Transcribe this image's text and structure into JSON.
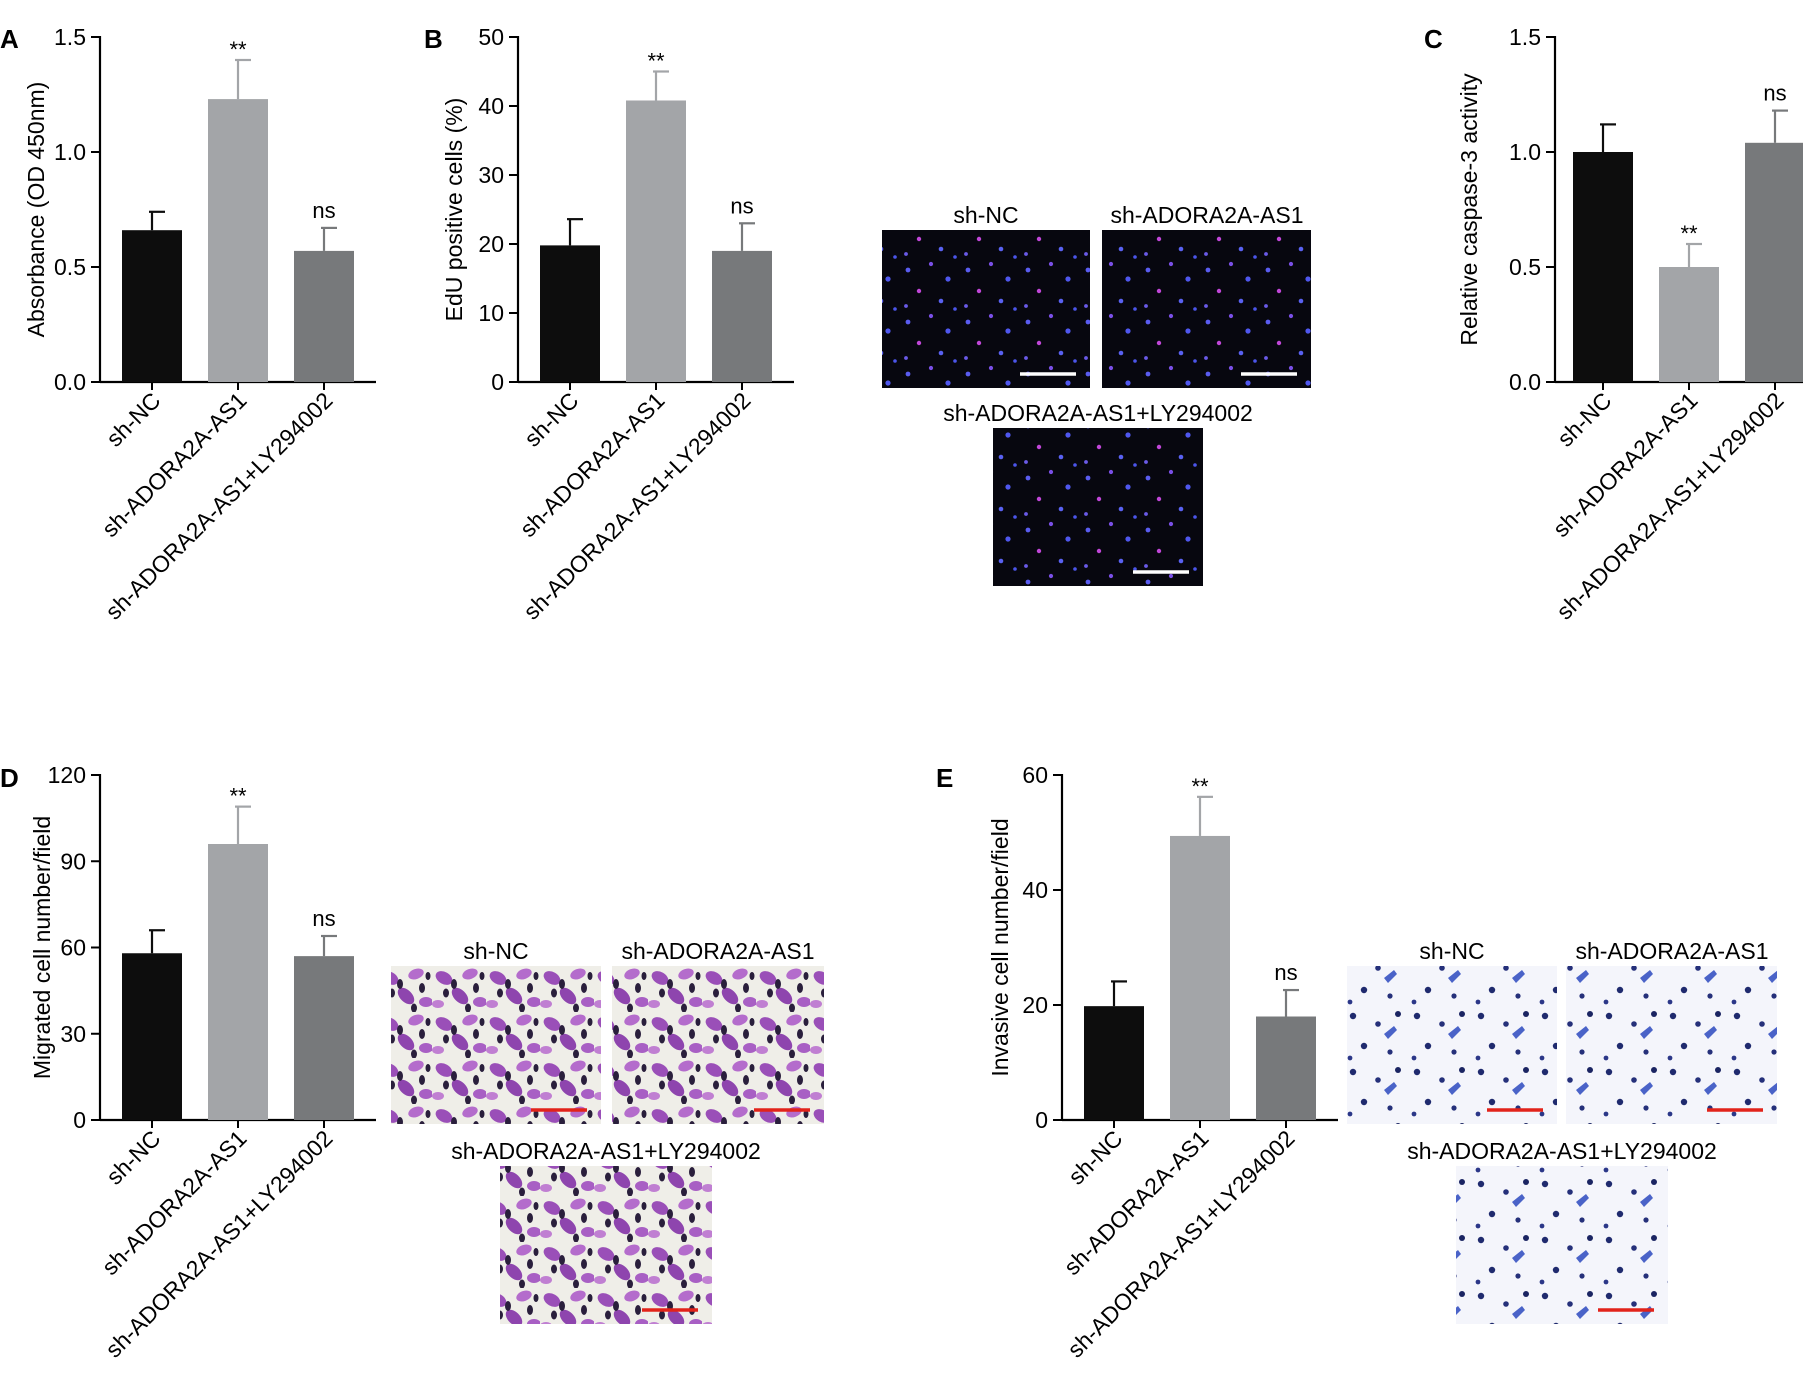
{
  "categories": [
    "sh-NC",
    "sh-ADORA2A-AS1",
    "sh-ADORA2A-AS1+LY294002"
  ],
  "colors": {
    "bar1": "#0d0d0d",
    "bar2": "#a3a5a8",
    "bar3": "#77797b",
    "scalebar_white": "#ffffff",
    "scalebar_red": "#e2231a"
  },
  "chart_data": [
    {
      "panel": "A",
      "type": "bar",
      "categories": [
        "sh-NC",
        "sh-ADORA2A-AS1",
        "sh-ADORA2A-AS1+LY294002"
      ],
      "values": [
        0.66,
        1.23,
        0.57
      ],
      "errors": [
        0.08,
        0.17,
        0.1
      ],
      "significance": [
        "",
        "**",
        "ns"
      ],
      "ylabel": "Absorbance (OD 450nm)",
      "ylim": [
        0,
        1.5
      ],
      "yticks": [
        "0.0",
        "0.5",
        "1.0",
        "1.5"
      ],
      "yticks_values": [
        0,
        0.5,
        1.0,
        1.5
      ]
    },
    {
      "panel": "B",
      "type": "bar",
      "categories": [
        "sh-NC",
        "sh-ADORA2A-AS1",
        "sh-ADORA2A-AS1+LY294002"
      ],
      "values": [
        19.8,
        40.8,
        19.0
      ],
      "errors": [
        3.8,
        4.2,
        4.0
      ],
      "significance": [
        "",
        "**",
        "ns"
      ],
      "ylabel": "EdU positive cells (%)",
      "ylim": [
        0,
        50
      ],
      "yticks": [
        "0",
        "10",
        "20",
        "30",
        "40",
        "50"
      ],
      "yticks_values": [
        0,
        10,
        20,
        30,
        40,
        50
      ]
    },
    {
      "panel": "C",
      "type": "bar",
      "categories": [
        "sh-NC",
        "sh-ADORA2A-AS1",
        "sh-ADORA2A-AS1+LY294002"
      ],
      "values": [
        1.0,
        0.5,
        1.04
      ],
      "errors": [
        0.12,
        0.1,
        0.14
      ],
      "significance": [
        "",
        "**",
        "ns"
      ],
      "ylabel": "Relative caspase-3 activity",
      "ylim": [
        0,
        1.5
      ],
      "yticks": [
        "0.0",
        "0.5",
        "1.0",
        "1.5"
      ],
      "yticks_values": [
        0,
        0.5,
        1.0,
        1.5
      ]
    },
    {
      "panel": "D",
      "type": "bar",
      "categories": [
        "sh-NC",
        "sh-ADORA2A-AS1",
        "sh-ADORA2A-AS1+LY294002"
      ],
      "values": [
        58,
        96,
        57
      ],
      "errors": [
        8,
        13,
        7
      ],
      "significance": [
        "",
        "**",
        "ns"
      ],
      "ylabel": "Migrated cell number/field",
      "ylim": [
        0,
        120
      ],
      "yticks": [
        "0",
        "30",
        "60",
        "90",
        "120"
      ],
      "yticks_values": [
        0,
        30,
        60,
        90,
        120
      ]
    },
    {
      "panel": "E",
      "type": "bar",
      "categories": [
        "sh-NC",
        "sh-ADORA2A-AS1",
        "sh-ADORA2A-AS1+LY294002"
      ],
      "values": [
        19.8,
        49.4,
        18.0
      ],
      "errors": [
        4.3,
        6.8,
        4.6
      ],
      "significance": [
        "",
        "**",
        "ns"
      ],
      "ylabel": "Invasive cell number/field",
      "ylim": [
        0,
        60
      ],
      "yticks": [
        "0",
        "20",
        "40",
        "60"
      ],
      "yticks_values": [
        0,
        20,
        40,
        60
      ]
    }
  ],
  "micrographs": {
    "B": {
      "labels": [
        "sh-NC",
        "sh-ADORA2A-AS1",
        "sh-ADORA2A-AS1+LY294002"
      ],
      "stain": "fluorescence"
    },
    "D": {
      "labels": [
        "sh-NC",
        "sh-ADORA2A-AS1",
        "sh-ADORA2A-AS1+LY294002"
      ],
      "stain": "crystal-violet"
    },
    "E": {
      "labels": [
        "sh-NC",
        "sh-ADORA2A-AS1",
        "sh-ADORA2A-AS1+LY294002"
      ],
      "stain": "blue"
    }
  }
}
